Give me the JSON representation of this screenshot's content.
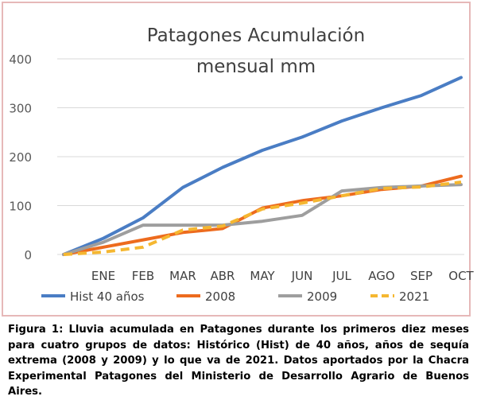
{
  "chart_data": {
    "type": "line",
    "title_lines": [
      "Patagones Acumulación",
      "mensual mm"
    ],
    "categories": [
      "",
      "ENE",
      "FEB",
      "MAR",
      "ABR",
      "MAY",
      "JUN",
      "JUL",
      "AGO",
      "SEP",
      "OCT"
    ],
    "ylim": [
      0,
      400
    ],
    "yticks": [
      "0",
      "100",
      "200",
      "300",
      "400"
    ],
    "grid": true,
    "legend_position": "bottom",
    "series": [
      {
        "name": "Hist 40 años",
        "color": "#4a7dc4",
        "dash": false,
        "values": [
          0,
          33,
          75,
          137,
          178,
          213,
          240,
          273,
          300,
          325,
          362
        ]
      },
      {
        "name": "2008",
        "color": "#ed6b1e",
        "dash": false,
        "values": [
          0,
          15,
          30,
          45,
          53,
          95,
          110,
          120,
          133,
          140,
          160
        ]
      },
      {
        "name": "2009",
        "color": "#9e9e9e",
        "dash": false,
        "values": [
          0,
          25,
          60,
          60,
          60,
          68,
          80,
          130,
          137,
          140,
          143
        ]
      },
      {
        "name": "2021",
        "color": "#f5b731",
        "dash": true,
        "values": [
          0,
          5,
          15,
          50,
          58,
          93,
          105,
          120,
          135,
          138,
          148
        ]
      }
    ]
  },
  "caption": "Figura 1: Lluvia acumulada en Patagones durante los primeros diez meses para cuatro grupos de datos: Histórico (Hist) de 40 años, años de sequía extrema (2008 y 2009) y lo que va de 2021. Datos aportados por la Chacra Experimental Patagones del Ministerio de Desarrollo Agrario de Buenos Aires."
}
